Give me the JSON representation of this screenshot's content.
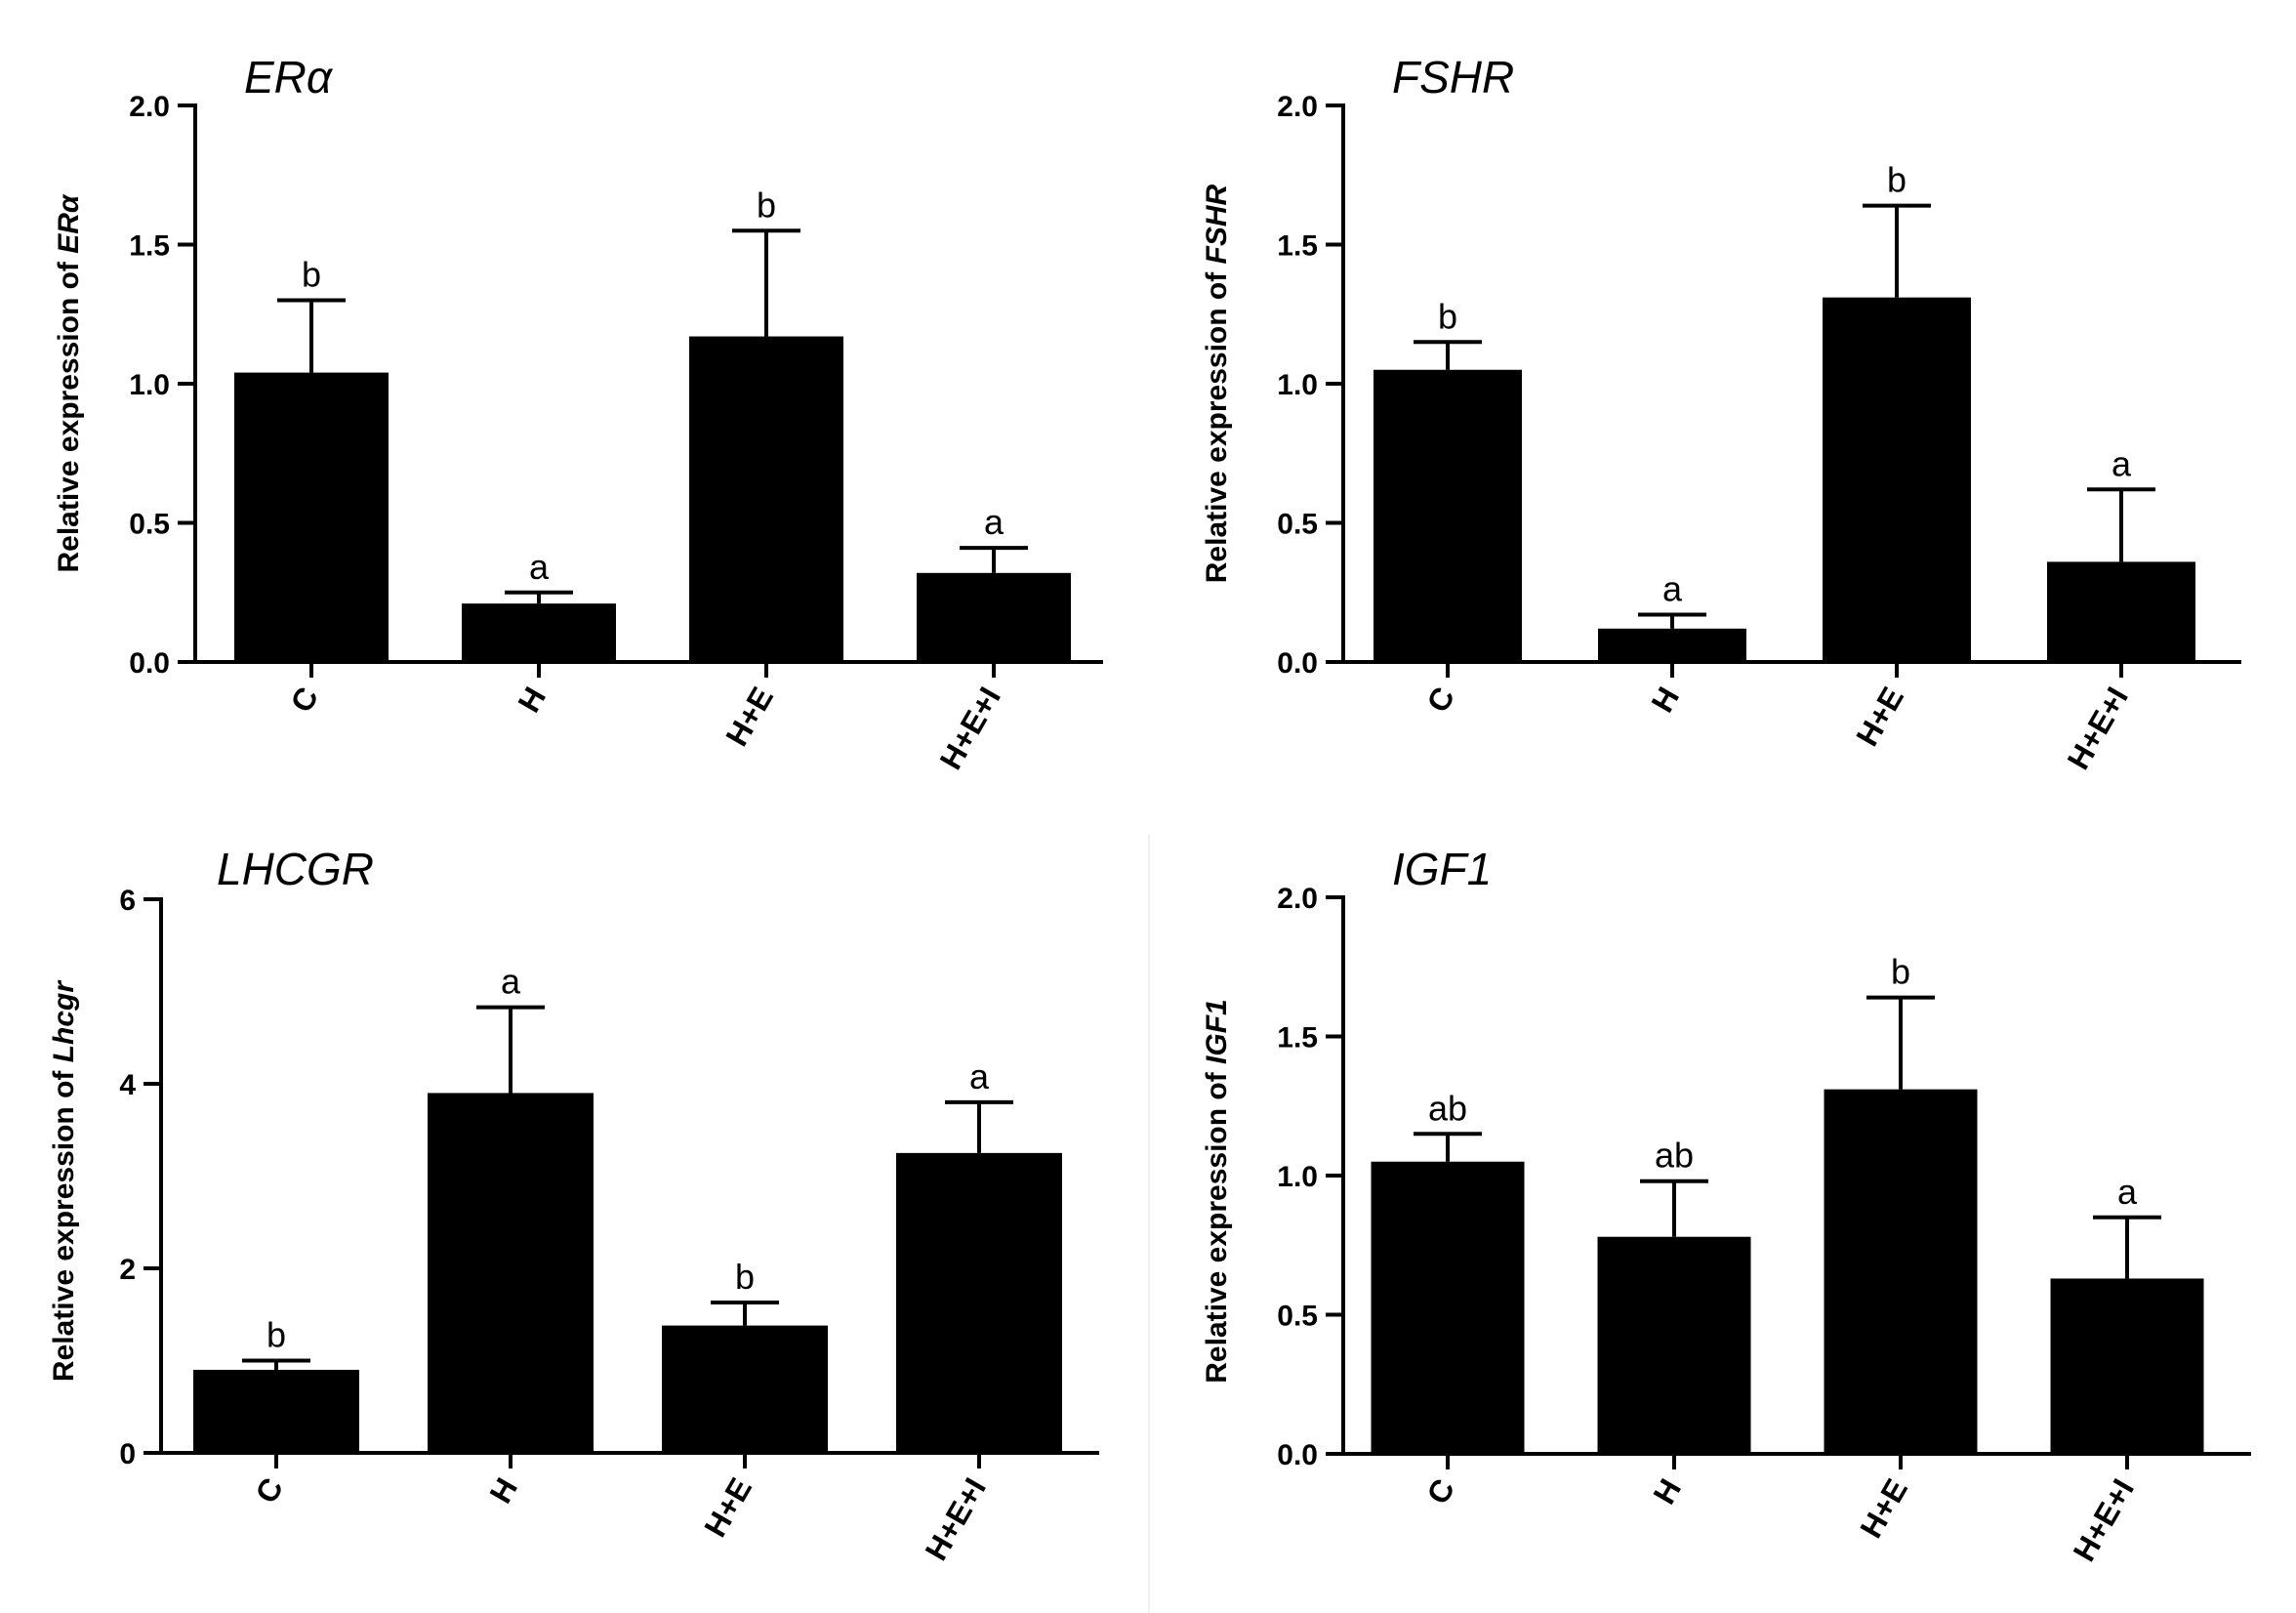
{
  "chart_data": [
    {
      "type": "bar",
      "title": "ERα",
      "ylabel_prefix": "Relative expression of ",
      "ylabel_gene": "ERα",
      "categories": [
        "C",
        "H",
        "H+E",
        "H+E+I"
      ],
      "values": [
        1.04,
        0.21,
        1.17,
        0.32
      ],
      "errors": [
        0.26,
        0.04,
        0.38,
        0.09
      ],
      "significance": [
        "b",
        "a",
        "b",
        "a"
      ],
      "ylim": [
        0,
        2.0
      ],
      "yticks": [
        0,
        0.5,
        1.0,
        1.5,
        2.0
      ],
      "ytick_labels": [
        "0.0",
        "0.5",
        "1.0",
        "1.5",
        "2.0"
      ]
    },
    {
      "type": "bar",
      "title": "FSHR",
      "ylabel_prefix": "Relative expression of ",
      "ylabel_gene": "FSHR",
      "categories": [
        "C",
        "H",
        "H+E",
        "H+E+I"
      ],
      "values": [
        1.05,
        0.12,
        1.31,
        0.36
      ],
      "errors": [
        0.1,
        0.05,
        0.33,
        0.26
      ],
      "significance": [
        "b",
        "a",
        "b",
        "a"
      ],
      "ylim": [
        0,
        2.0
      ],
      "yticks": [
        0,
        0.5,
        1.0,
        1.5,
        2.0
      ],
      "ytick_labels": [
        "0.0",
        "0.5",
        "1.0",
        "1.5",
        "2.0"
      ]
    },
    {
      "type": "bar",
      "title": "LHCGR",
      "ylabel_prefix": "Relative expression of ",
      "ylabel_gene": "Lhcgr",
      "categories": [
        "C",
        "H",
        "H+E",
        "H+E+I"
      ],
      "values": [
        0.9,
        3.9,
        1.38,
        3.25
      ],
      "errors": [
        0.1,
        0.93,
        0.25,
        0.55
      ],
      "significance": [
        "b",
        "a",
        "b",
        "a"
      ],
      "ylim": [
        0,
        6
      ],
      "yticks": [
        0,
        2,
        4,
        6
      ],
      "ytick_labels": [
        "0",
        "2",
        "4",
        "6"
      ]
    },
    {
      "type": "bar",
      "title": "IGF1",
      "ylabel_prefix": "Relative expression of ",
      "ylabel_gene": "IGF1",
      "categories": [
        "C",
        "H",
        "H+E",
        "H+E+I"
      ],
      "values": [
        1.05,
        0.78,
        1.31,
        0.63
      ],
      "errors": [
        0.1,
        0.2,
        0.33,
        0.22
      ],
      "significance": [
        "ab",
        "ab",
        "b",
        "a"
      ],
      "ylim": [
        0,
        2.0
      ],
      "yticks": [
        0,
        0.5,
        1.0,
        1.5,
        2.0
      ],
      "ytick_labels": [
        "0.0",
        "0.5",
        "1.0",
        "1.5",
        "2.0"
      ]
    }
  ]
}
